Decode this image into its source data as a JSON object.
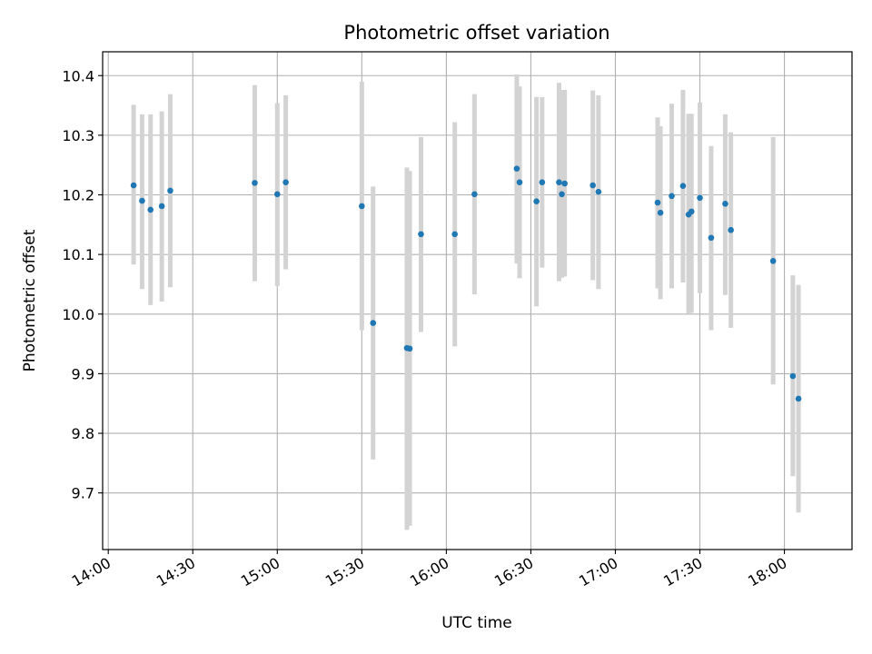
{
  "chart_data": {
    "type": "scatter",
    "title": "Photometric offset variation",
    "xlabel": "UTC time",
    "ylabel": "Photometric offset",
    "x_ticks": [
      "14:00",
      "14:30",
      "15:00",
      "15:30",
      "16:00",
      "16:30",
      "17:00",
      "17:30",
      "18:00"
    ],
    "y_ticks": [
      "9.7",
      "9.8",
      "9.9",
      "10.0",
      "10.1",
      "10.2",
      "10.3",
      "10.4"
    ],
    "xlim": [
      "13:58",
      "18:24"
    ],
    "ylim": [
      9.605,
      10.44
    ],
    "grid": true,
    "colors": {
      "point": "#1f77b4",
      "errorbar": "#d3d3d3",
      "grid": "#b0b0b0"
    },
    "points": [
      {
        "time": "14:09",
        "y": 10.216,
        "y_low": 10.083,
        "y_high": 10.351
      },
      {
        "time": "14:12",
        "y": 10.19,
        "y_low": 10.042,
        "y_high": 10.335
      },
      {
        "time": "14:15",
        "y": 10.175,
        "y_low": 10.015,
        "y_high": 10.335
      },
      {
        "time": "14:19",
        "y": 10.181,
        "y_low": 10.021,
        "y_high": 10.34
      },
      {
        "time": "14:22",
        "y": 10.207,
        "y_low": 10.045,
        "y_high": 10.369
      },
      {
        "time": "14:52",
        "y": 10.22,
        "y_low": 10.055,
        "y_high": 10.384
      },
      {
        "time": "15:00",
        "y": 10.201,
        "y_low": 10.047,
        "y_high": 10.354
      },
      {
        "time": "15:03",
        "y": 10.221,
        "y_low": 10.075,
        "y_high": 10.367
      },
      {
        "time": "15:30",
        "y": 10.181,
        "y_low": 9.973,
        "y_high": 10.39
      },
      {
        "time": "15:34",
        "y": 9.985,
        "y_low": 9.756,
        "y_high": 10.214
      },
      {
        "time": "15:46",
        "y": 9.943,
        "y_low": 9.638,
        "y_high": 10.246
      },
      {
        "time": "15:47",
        "y": 9.942,
        "y_low": 9.645,
        "y_high": 10.24
      },
      {
        "time": "15:51",
        "y": 10.134,
        "y_low": 9.97,
        "y_high": 10.297
      },
      {
        "time": "16:03",
        "y": 10.134,
        "y_low": 9.946,
        "y_high": 10.322
      },
      {
        "time": "16:10",
        "y": 10.201,
        "y_low": 10.033,
        "y_high": 10.369
      },
      {
        "time": "16:25",
        "y": 10.244,
        "y_low": 10.085,
        "y_high": 10.402
      },
      {
        "time": "16:26",
        "y": 10.221,
        "y_low": 10.06,
        "y_high": 10.382
      },
      {
        "time": "16:32",
        "y": 10.189,
        "y_low": 10.013,
        "y_high": 10.364
      },
      {
        "time": "16:34",
        "y": 10.221,
        "y_low": 10.078,
        "y_high": 10.364
      },
      {
        "time": "16:40",
        "y": 10.221,
        "y_low": 10.055,
        "y_high": 10.388
      },
      {
        "time": "16:41",
        "y": 10.201,
        "y_low": 10.061,
        "y_high": 10.376
      },
      {
        "time": "16:42",
        "y": 10.219,
        "y_low": 10.063,
        "y_high": 10.376
      },
      {
        "time": "16:52",
        "y": 10.216,
        "y_low": 10.057,
        "y_high": 10.375
      },
      {
        "time": "16:54",
        "y": 10.205,
        "y_low": 10.042,
        "y_high": 10.367
      },
      {
        "time": "17:15",
        "y": 10.187,
        "y_low": 10.043,
        "y_high": 10.33
      },
      {
        "time": "17:16",
        "y": 10.17,
        "y_low": 10.025,
        "y_high": 10.315
      },
      {
        "time": "17:20",
        "y": 10.198,
        "y_low": 10.043,
        "y_high": 10.353
      },
      {
        "time": "17:24",
        "y": 10.215,
        "y_low": 10.053,
        "y_high": 10.376
      },
      {
        "time": "17:26",
        "y": 10.167,
        "y_low": 10.0,
        "y_high": 10.336
      },
      {
        "time": "17:27",
        "y": 10.172,
        "y_low": 10.002,
        "y_high": 10.336
      },
      {
        "time": "17:30",
        "y": 10.195,
        "y_low": 10.035,
        "y_high": 10.355
      },
      {
        "time": "17:34",
        "y": 10.128,
        "y_low": 9.973,
        "y_high": 10.282
      },
      {
        "time": "17:39",
        "y": 10.185,
        "y_low": 10.032,
        "y_high": 10.335
      },
      {
        "time": "17:41",
        "y": 10.141,
        "y_low": 9.977,
        "y_high": 10.305
      },
      {
        "time": "17:56",
        "y": 10.089,
        "y_low": 9.882,
        "y_high": 10.297
      },
      {
        "time": "18:03",
        "y": 9.896,
        "y_low": 9.728,
        "y_high": 10.065
      },
      {
        "time": "18:05",
        "y": 9.858,
        "y_low": 9.667,
        "y_high": 10.049
      }
    ]
  }
}
